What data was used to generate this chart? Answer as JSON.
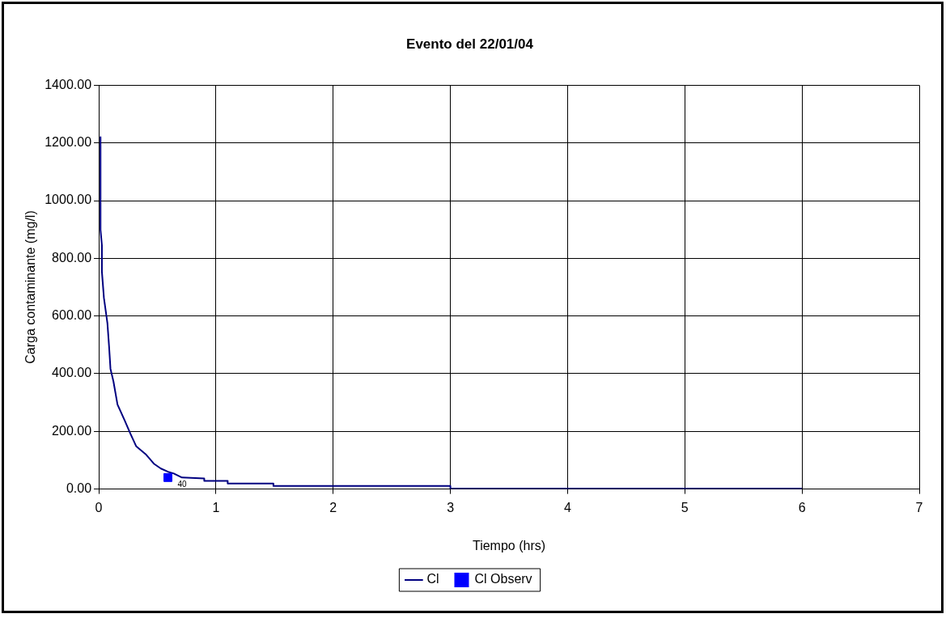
{
  "chart_data": {
    "type": "line",
    "title": "Evento del 22/01/04",
    "xlabel": "Tiempo (hrs)",
    "ylabel": "Carga contaminante (mg/l)",
    "xlim": [
      0,
      7
    ],
    "xticks": [
      0,
      1,
      2,
      3,
      4,
      5,
      6,
      7
    ],
    "ylim": [
      0,
      1400
    ],
    "yticks": [
      {
        "value": 0,
        "label": "0.00"
      },
      {
        "value": 200,
        "label": "200.00"
      },
      {
        "value": 400,
        "label": "400.00"
      },
      {
        "value": 600,
        "label": "600.00"
      },
      {
        "value": 800,
        "label": "800.00"
      },
      {
        "value": 1000,
        "label": "1000.00"
      },
      {
        "value": 1200,
        "label": "1200.00"
      },
      {
        "value": 1400,
        "label": "1400.00"
      }
    ],
    "grid": true,
    "legend": "bottom",
    "series": [
      {
        "name": "Cl",
        "type": "line",
        "color": "#000080",
        "marker": "none",
        "x": [
          0.015,
          0.015,
          0.027,
          0.027,
          0.044,
          0.074,
          0.088,
          0.1,
          0.125,
          0.16,
          0.22,
          0.27,
          0.32,
          0.4,
          0.47,
          0.53,
          0.59,
          0.64,
          0.71,
          0.9,
          0.9,
          1.1,
          1.1,
          1.49,
          1.49,
          3.0,
          3.0,
          6.0
        ],
        "values": [
          1220,
          899,
          845,
          754,
          663,
          575,
          495,
          417,
          374,
          293,
          239,
          192,
          148,
          121,
          88,
          71,
          60,
          54,
          40,
          37,
          28,
          28,
          19,
          19,
          11,
          11,
          2,
          2
        ]
      },
      {
        "name": "Cl Observ",
        "type": "scatter",
        "color": "#0000ff",
        "marker": "square",
        "x": [
          0.59
        ],
        "values": [
          40
        ],
        "value_labels": [
          "40"
        ]
      }
    ]
  }
}
